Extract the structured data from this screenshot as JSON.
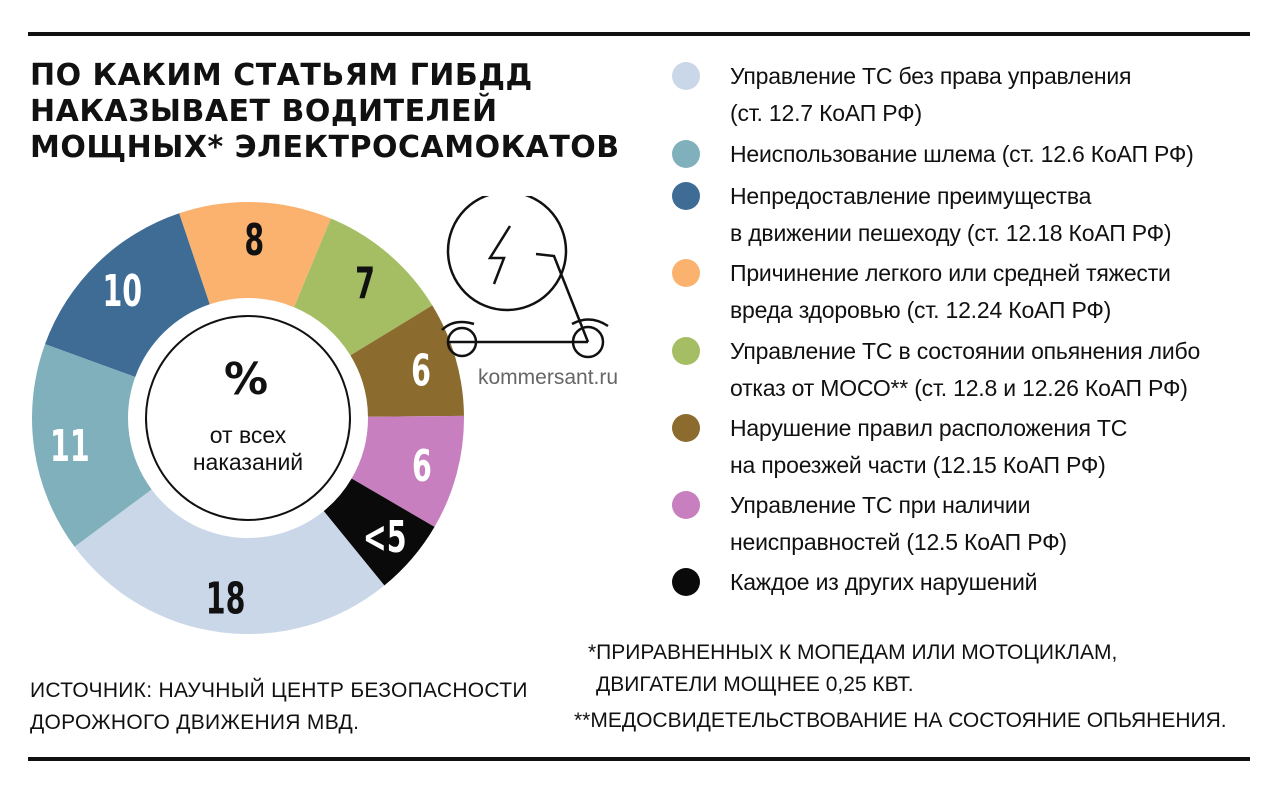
{
  "title_lines": [
    "По каким статьям ГИБДД",
    "наказывает водителей",
    "мощных* электросамокатов"
  ],
  "center": {
    "unit": "%",
    "caption_lines": [
      "от всех",
      "наказаний"
    ]
  },
  "watermark": "kommersant.ru",
  "source_lines": [
    "Источник: Научный центр безопасности",
    "дорожного движения МВД."
  ],
  "footnotes": {
    "fn1_line1": "*ПРИРАВНЕННЫХ К МОПЕДАМ ИЛИ МОТОЦИКЛАМ,",
    "fn1_line2": "ДВИГАТЕЛИ МОЩНЕЕ 0,25 КВТ.",
    "fn2": "**МЕДОСВИДЕТЕЛЬСТВОВАНИЕ НА СОСТОЯНИЕ ОПЬЯНЕНИЯ."
  },
  "icons": [
    "electric-scooter-icon",
    "lightning-bolt-icon"
  ],
  "chart_data": {
    "type": "pie",
    "donut": true,
    "unit": "%",
    "slices": [
      {
        "label": "Непредоставление преимущества в движении пешеходу (ст. 12.18 КоАП РФ)",
        "value": 10,
        "display": "10",
        "color": "#3f6c95"
      },
      {
        "label": "Причинение легкого или средней тяжести вреда здоровью (ст. 12.24 КоАП РФ)",
        "value": 8,
        "display": "8",
        "color": "#fbb26e"
      },
      {
        "label": "Управление ТС в состоянии опьянения либо отказ от МОСО** (ст. 12.8 и 12.26 КоАП РФ)",
        "value": 7,
        "display": "7",
        "color": "#a5bd63"
      },
      {
        "label": "Нарушение правил расположения ТС на проезжей части (12.15 КоАП РФ)",
        "value": 6,
        "display": "6",
        "color": "#8b6b2e"
      },
      {
        "label": "Управление ТС при наличии неисправностей (12.5 КоАП РФ)",
        "value": 6,
        "display": "6",
        "color": "#c77fbf"
      },
      {
        "label": "Каждое из других нарушений",
        "value": 4,
        "display": "<5",
        "color": "#0a0a0a"
      },
      {
        "label": "Управление ТС без права управления (ст. 12.7 КоАП РФ)",
        "value": 18,
        "display": "18",
        "color": "#c9d7e8"
      },
      {
        "label": "Неиспользование шлема (ст. 12.6 КоАП РФ)",
        "value": 11,
        "display": "11",
        "color": "#7fb0bc"
      }
    ]
  },
  "legend": [
    {
      "lines": [
        "Управление ТС без права управления",
        "(ст. 12.7 КоАП РФ)"
      ],
      "color": "#c9d7e8"
    },
    {
      "lines": [
        "Неиспользование шлема (ст. 12.6 КоАП РФ)"
      ],
      "color": "#7fb0bc"
    },
    {
      "lines": [
        "Непредоставление преимущества",
        "в движении пешеходу (ст. 12.18 КоАП РФ)"
      ],
      "color": "#3f6c95"
    },
    {
      "lines": [
        "Причинение легкого или средней тяжести",
        "вреда здоровью (ст. 12.24 КоАП РФ)"
      ],
      "color": "#fbb26e"
    },
    {
      "lines": [
        "Управление ТС в состоянии опьянения либо",
        "отказ от МОСО** (ст. 12.8 и 12.26 КоАП РФ)"
      ],
      "color": "#a5bd63"
    },
    {
      "lines": [
        "Нарушение правил расположения ТС",
        "на проезжей части (12.15 КоАП РФ)"
      ],
      "color": "#8b6b2e"
    },
    {
      "lines": [
        "Управление ТС при наличии",
        "неисправностей (12.5 КоАП РФ)"
      ],
      "color": "#c77fbf"
    },
    {
      "lines": [
        "Каждое из других нарушений"
      ],
      "color": "#0a0a0a"
    }
  ]
}
